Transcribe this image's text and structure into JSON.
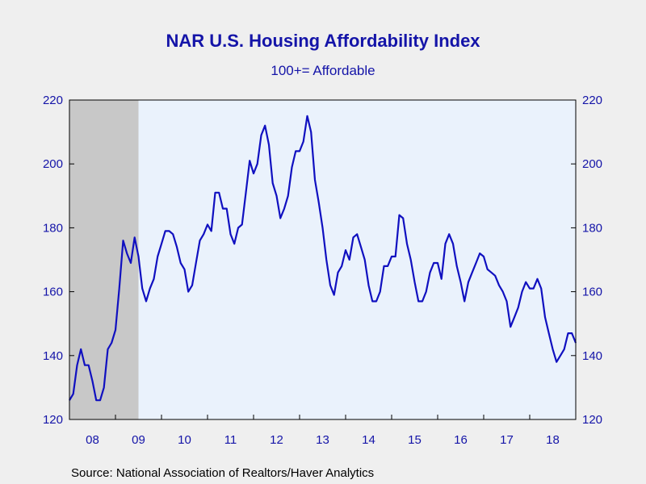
{
  "chart_data": {
    "type": "line",
    "title": "NAR U.S. Housing Affordability Index",
    "subtitle": "100+= Affordable",
    "source": "Source:  National Association of Realtors/Haver Analytics",
    "ylim": [
      120,
      220
    ],
    "yticks": [
      120,
      140,
      160,
      180,
      200,
      220
    ],
    "xlim": [
      2008.0,
      2019.0
    ],
    "xticks": [
      {
        "label": "08",
        "year": 2008
      },
      {
        "label": "09",
        "year": 2009
      },
      {
        "label": "10",
        "year": 2010
      },
      {
        "label": "11",
        "year": 2011
      },
      {
        "label": "12",
        "year": 2012
      },
      {
        "label": "13",
        "year": 2013
      },
      {
        "label": "14",
        "year": 2014
      },
      {
        "label": "15",
        "year": 2015
      },
      {
        "label": "16",
        "year": 2016
      },
      {
        "label": "17",
        "year": 2017
      },
      {
        "label": "18",
        "year": 2018
      }
    ],
    "shaded_region": {
      "from": 2008.0,
      "to": 2009.5,
      "color": "#c8c8c8"
    },
    "plot_background": "#eaf2fc",
    "line_color": "#1010c0",
    "grid": false,
    "series": [
      {
        "x_start": 2008.0,
        "step": 0.0833333,
        "values": [
          126,
          128,
          137,
          142,
          137,
          137,
          132,
          126,
          126,
          130,
          142,
          144,
          148,
          161,
          176,
          172,
          169,
          177,
          171,
          161,
          157,
          161,
          164,
          171,
          175,
          179,
          179,
          178,
          174,
          169,
          167,
          160,
          162,
          169,
          176,
          178,
          181,
          179,
          191,
          191,
          186,
          186,
          178,
          175,
          180,
          181,
          191,
          201,
          197,
          200,
          209,
          212,
          206,
          194,
          190,
          183,
          186,
          190,
          199,
          204,
          204,
          207,
          215,
          210,
          195,
          188,
          180,
          170,
          162,
          159,
          166,
          168,
          173,
          170,
          177,
          178,
          174,
          170,
          162,
          157,
          157,
          160,
          168,
          168,
          171,
          171,
          184,
          183,
          175,
          170,
          163,
          157,
          157,
          160,
          166,
          169,
          169,
          164,
          175,
          178,
          175,
          168,
          163,
          157,
          163,
          166,
          169,
          172,
          171,
          167,
          166,
          165,
          162,
          160,
          157,
          149,
          152,
          155,
          160,
          163,
          161,
          161,
          164,
          161,
          152,
          147,
          142,
          138,
          140,
          142,
          147,
          147,
          144
        ]
      }
    ]
  }
}
